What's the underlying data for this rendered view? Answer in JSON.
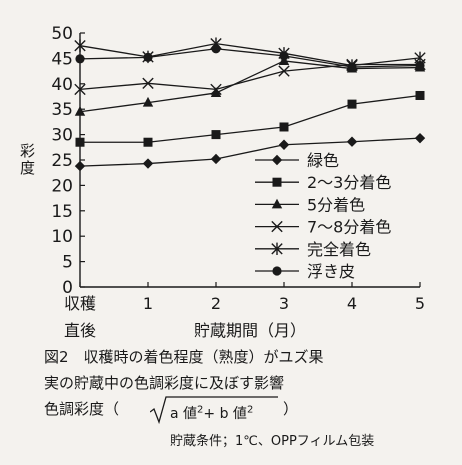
{
  "chart_data": {
    "type": "line",
    "ylabel": "彩度",
    "xlabel": "貯蔵期間（月）",
    "ylim": [
      0,
      50
    ],
    "yticks": [
      0,
      5,
      10,
      15,
      20,
      25,
      30,
      35,
      40,
      45,
      50
    ],
    "x_ticks": [
      {
        "x": 0,
        "label": "収穫",
        "label2": "直後"
      },
      {
        "x": 1,
        "label": "1"
      },
      {
        "x": 2,
        "label": "2"
      },
      {
        "x": 3,
        "label": "3"
      },
      {
        "x": 4,
        "label": "4"
      },
      {
        "x": 5,
        "label": "5"
      }
    ],
    "xlim": [
      0,
      5
    ],
    "grid": false,
    "legend_position": "bottom-right",
    "x": [
      0,
      1,
      2,
      3,
      4,
      5
    ],
    "series": [
      {
        "name": "緑色",
        "marker": "diamond",
        "values": [
          23.8,
          24.3,
          25.2,
          28.0,
          28.6,
          29.3
        ]
      },
      {
        "name": "2～3分着色",
        "marker": "square",
        "values": [
          28.5,
          28.5,
          30.0,
          31.5,
          36.0,
          37.7
        ]
      },
      {
        "name": "5分着色",
        "marker": "triangle",
        "values": [
          34.5,
          36.3,
          38.2,
          44.5,
          43.0,
          43.2
        ]
      },
      {
        "name": "7～8分着色",
        "marker": "x",
        "values": [
          38.9,
          40.1,
          38.9,
          42.5,
          43.8,
          43.8
        ]
      },
      {
        "name": "完全着色",
        "marker": "asterisk",
        "values": [
          47.5,
          45.3,
          47.9,
          46.0,
          43.6,
          45.1
        ]
      },
      {
        "name": "浮き皮",
        "marker": "circle",
        "values": [
          44.9,
          45.2,
          46.9,
          45.5,
          43.3,
          43.6
        ]
      }
    ]
  },
  "caption": {
    "line1": "図2　収穫時の着色程度（熟度）がユズ果",
    "line2": "実の貯蔵中の色調彩度に及ぼす影響",
    "line3_prefix": "色調彩度（",
    "line3_a": "a 値",
    "line3_sup": "2",
    "line3_mid": "+ b 値",
    "line3_sup2": "2",
    "line3_suffix": "）",
    "line4": "貯蔵条件；1℃、OPPフィルム包装"
  }
}
